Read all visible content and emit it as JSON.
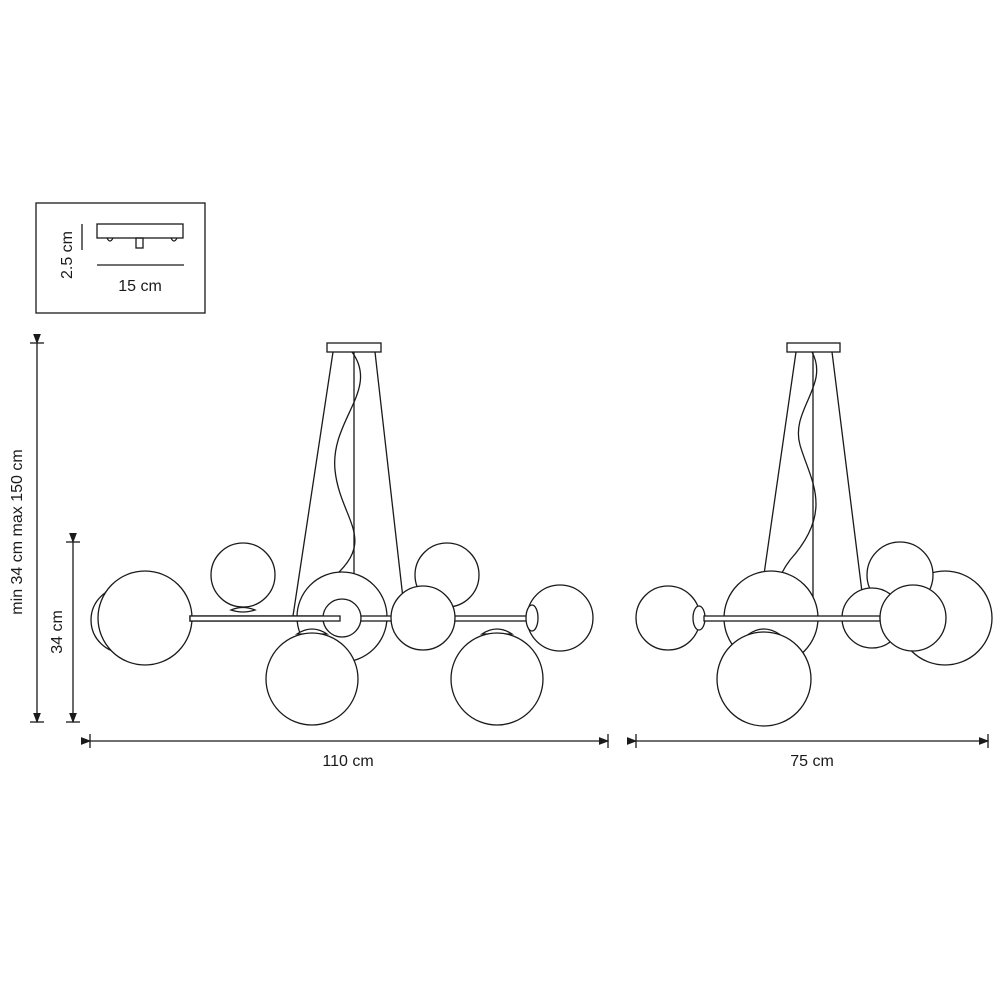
{
  "inset": {
    "height_label": "2.5 cm",
    "width_label": "15 cm"
  },
  "dimensions": {
    "total_height_label": "min 34 cm max 150 cm",
    "body_height_label": "34 cm",
    "front_width_label": "110 cm",
    "side_width_label": "75 cm"
  },
  "colors": {
    "line": "#1a1a1a",
    "background": "#ffffff"
  }
}
